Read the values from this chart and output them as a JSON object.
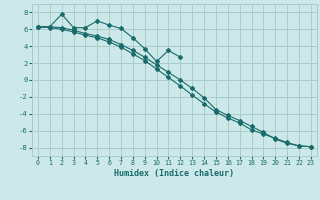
{
  "x": [
    0,
    1,
    2,
    3,
    4,
    5,
    6,
    7,
    8,
    9,
    10,
    11,
    12,
    13,
    14,
    15,
    16,
    17,
    18,
    19,
    20,
    21,
    22,
    23
  ],
  "line1": [
    6.3,
    6.3,
    7.8,
    6.2,
    6.2,
    7.0,
    6.5,
    6.1,
    5.0,
    3.7,
    2.2,
    3.5,
    2.7,
    null,
    null,
    null,
    null,
    null,
    null,
    null,
    null,
    null,
    null,
    null
  ],
  "line2": [
    6.3,
    6.3,
    6.2,
    5.9,
    5.5,
    5.2,
    4.8,
    4.2,
    3.5,
    2.7,
    1.8,
    0.9,
    0.0,
    -1.0,
    -2.1,
    -3.5,
    -4.2,
    -4.8,
    -5.5,
    -6.2,
    -7.0,
    -7.5,
    -7.8,
    -7.9
  ],
  "line3": [
    6.3,
    6.2,
    6.0,
    5.7,
    5.3,
    5.0,
    4.5,
    3.9,
    3.1,
    2.3,
    1.3,
    0.3,
    -0.7,
    -1.8,
    -2.8,
    -3.8,
    -4.5,
    -5.1,
    -5.9,
    -6.4,
    -6.9,
    -7.4,
    -7.8,
    -7.9
  ],
  "background_color": "#cce8e8",
  "grid_color": "#aacccc",
  "line_color": "#1a6b6b",
  "xlabel": "Humidex (Indice chaleur)",
  "xlim": [
    -0.5,
    23.5
  ],
  "ylim": [
    -9,
    9
  ],
  "yticks": [
    -8,
    -6,
    -4,
    -2,
    0,
    2,
    4,
    6,
    8
  ],
  "xticks": [
    0,
    1,
    2,
    3,
    4,
    5,
    6,
    7,
    8,
    9,
    10,
    11,
    12,
    13,
    14,
    15,
    16,
    17,
    18,
    19,
    20,
    21,
    22,
    23
  ]
}
